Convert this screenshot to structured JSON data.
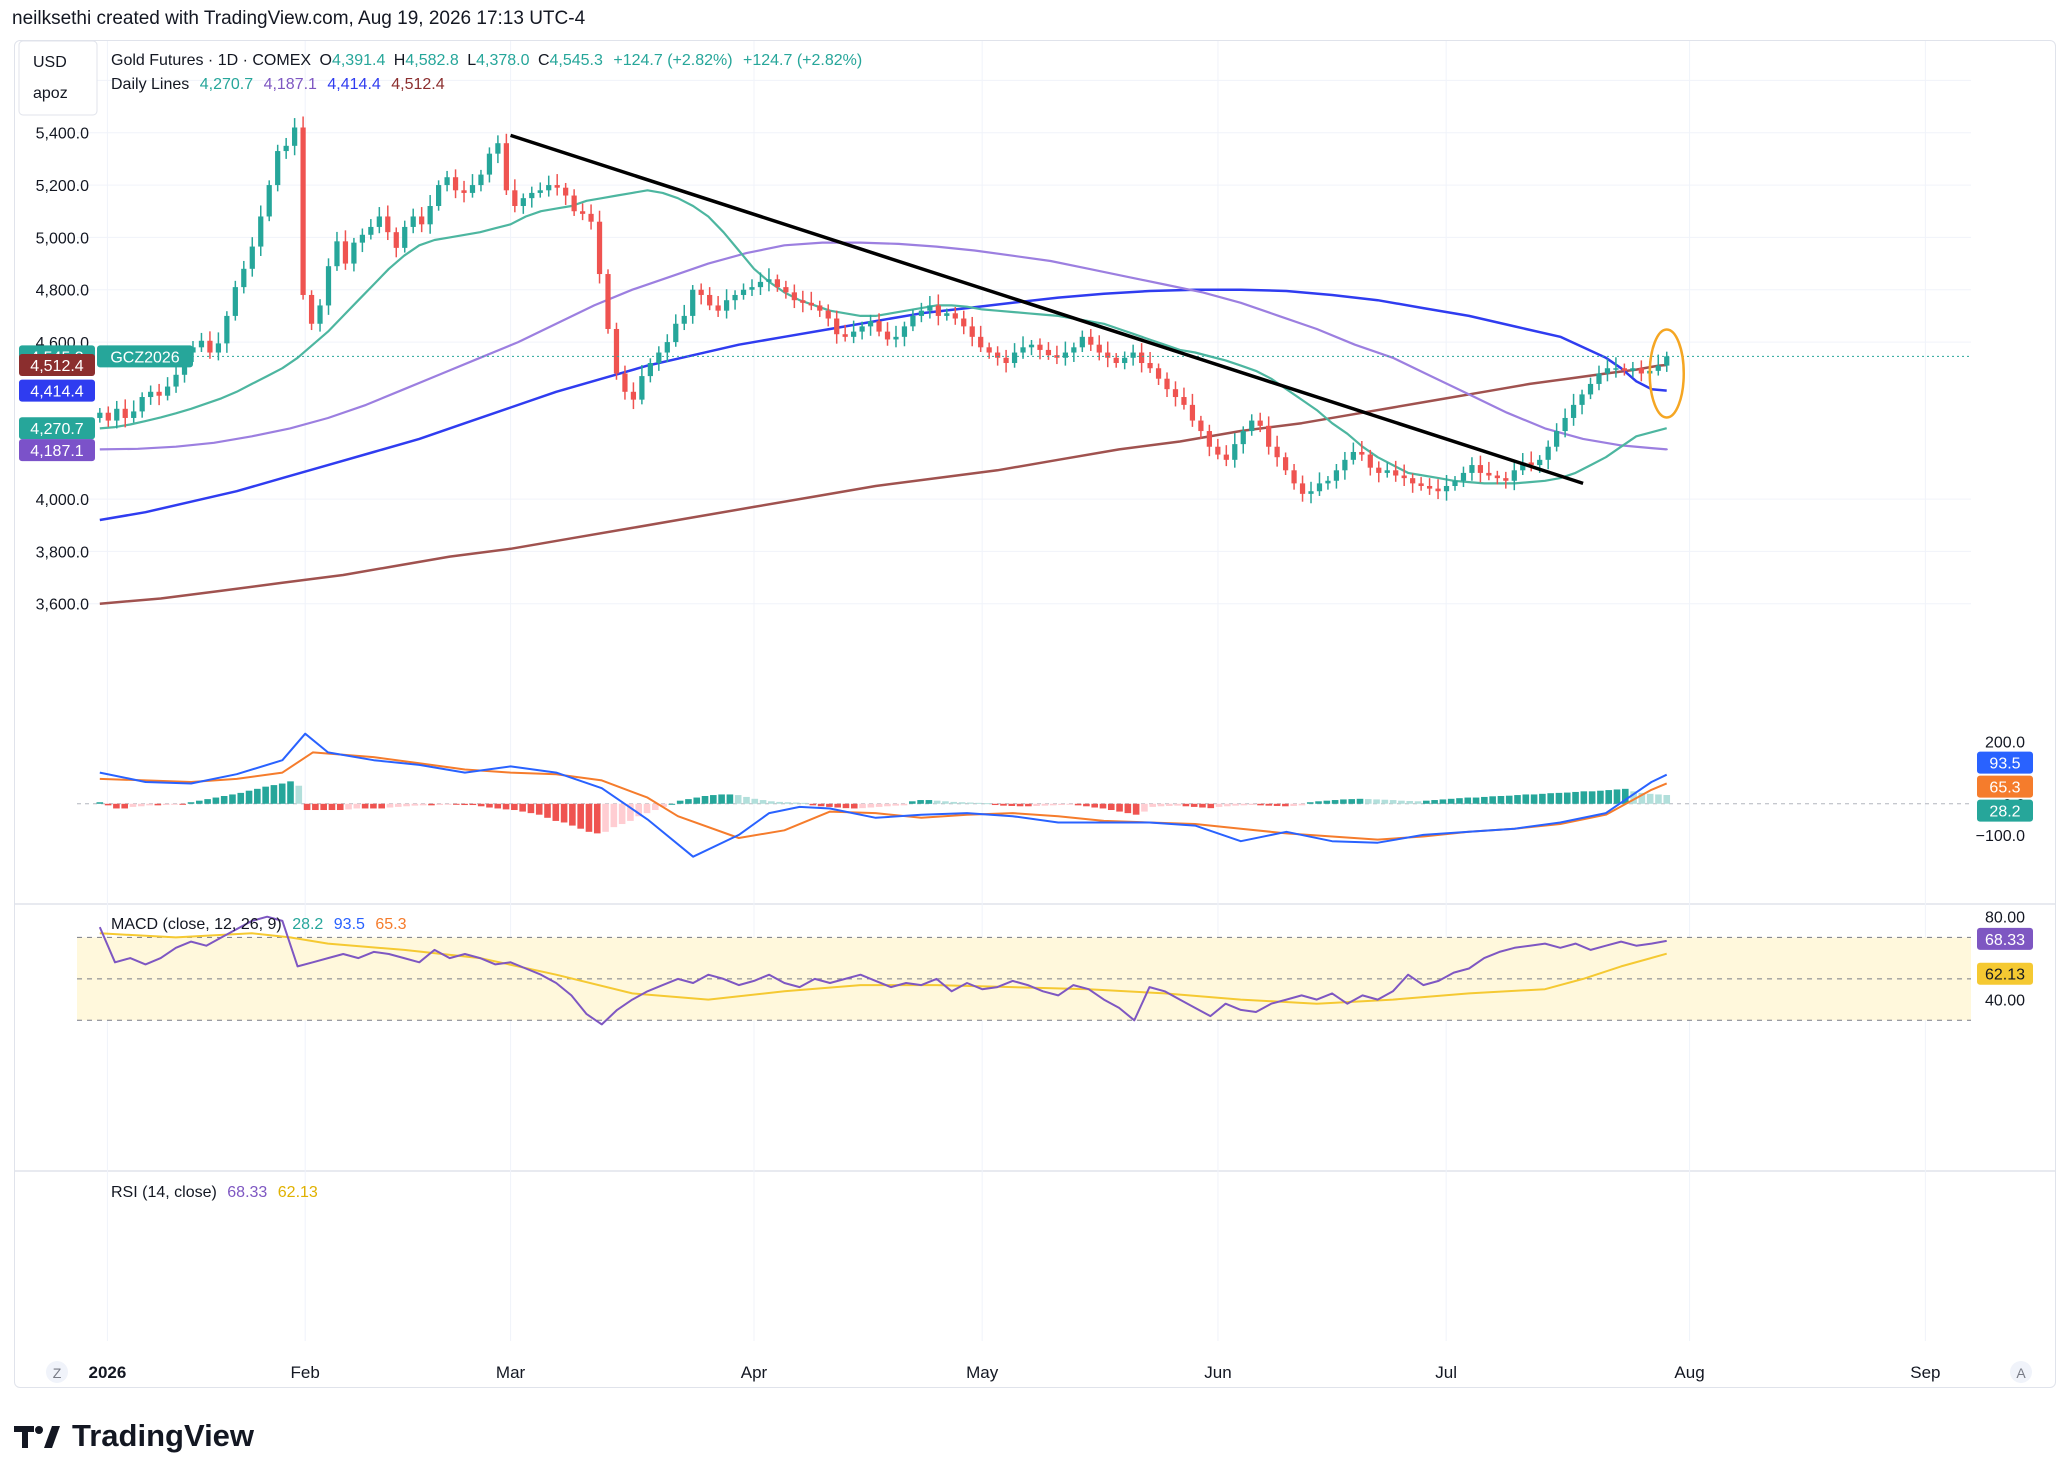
{
  "header": {
    "credit": "neilksethi created with TradingView.com, Aug 19, 2026 17:13 UTC-4"
  },
  "branding": {
    "name": "TradingView"
  },
  "toolbar": {
    "currency": "USD",
    "unit": "apoz",
    "zoom_left": "Z",
    "zoom_right": "A"
  },
  "legend": {
    "symbol": "Gold Futures · 1D · COMEX",
    "open_label": "O",
    "open": "4,391.4",
    "high_label": "H",
    "high": "4,582.8",
    "low_label": "L",
    "low": "4,378.0",
    "close_label": "C",
    "close": "4,545.3",
    "change": "+124.7 (+2.82%)",
    "change2": "+124.7 (+2.82%)",
    "lines_title": "Daily Lines",
    "line_values": [
      "4,270.7",
      "4,187.1",
      "4,414.4",
      "4,512.4"
    ]
  },
  "price_badges": [
    {
      "text": "4,545.3",
      "color": "#26a69a",
      "price": 4545.3
    },
    {
      "text": "4,512.4",
      "color": "#8b2e2e",
      "price": 4512.4
    },
    {
      "text": "4,414.4",
      "color": "#2f3cf0",
      "price": 4414.4
    },
    {
      "text": "4,270.7",
      "color": "#26a69a",
      "price": 4270.7
    },
    {
      "text": "4,187.1",
      "color": "#7b52c9",
      "price": 4187.1
    }
  ],
  "symbol_tag": "GCZ2026",
  "macd_legend": {
    "title": "MACD (close, 12, 26, 9)",
    "v1": "28.2",
    "v2": "93.5",
    "v3": "65.3"
  },
  "macd_badges": [
    {
      "text": "93.5",
      "color": "#2962ff",
      "value": 93.5
    },
    {
      "text": "65.3",
      "color": "#f57c2c",
      "value": 65.3
    },
    {
      "text": "28.2",
      "color": "#26a69a",
      "value": 28.2
    }
  ],
  "rsi_legend": {
    "title": "RSI (14, close)",
    "v1": "68.33",
    "v2": "62.13"
  },
  "rsi_badges": [
    {
      "text": "68.33",
      "color": "#7e57c2",
      "value": 68.33
    },
    {
      "text": "62.13",
      "color": "#f5c932",
      "value": 62.13
    }
  ],
  "colors": {
    "up": "#26a69a",
    "down": "#ef5350",
    "ma20": "#4db6a0",
    "ma50": "#9c7fe0",
    "ma100": "#2f3cf0",
    "ma200": "#a0524f",
    "grid": "#f0f3fa",
    "trendline": "#000000",
    "highlight": "#f5a623"
  },
  "chart_data": [
    {
      "type": "candlestick",
      "title": "Gold Futures · 1D · COMEX",
      "ylim": [
        3450,
        5720
      ],
      "y_ticks": [
        5600,
        5400,
        5200,
        5000,
        4800,
        4600,
        4000,
        3800,
        3600
      ],
      "y_tick_labels": [
        "5,600.0",
        "5,400.0",
        "5,200.0",
        "5,000.0",
        "4,800.0",
        "4,600.0",
        "4,000.0",
        "3,800.0",
        "3,600.0"
      ],
      "x_ticks": [
        "2026",
        "Feb",
        "Mar",
        "Apr",
        "May",
        "Jun",
        "Jul",
        "Aug",
        "Sep"
      ],
      "x_tick_days": [
        1,
        27,
        54,
        86,
        116,
        147,
        177,
        209,
        240
      ],
      "x_range_days": [
        -3,
        246
      ],
      "closes": [
        4330,
        4300,
        4345,
        4310,
        4335,
        4390,
        4410,
        4395,
        4430,
        4475,
        4560,
        4580,
        4605,
        4560,
        4595,
        4700,
        4810,
        4880,
        4965,
        5080,
        5200,
        5330,
        5350,
        5420,
        4780,
        4670,
        4740,
        4890,
        4985,
        4900,
        4980,
        5010,
        5040,
        5080,
        5020,
        4960,
        5040,
        5080,
        5050,
        5120,
        5200,
        5230,
        5180,
        5170,
        5200,
        5240,
        5320,
        5360,
        5180,
        5120,
        5150,
        5170,
        5180,
        5200,
        5190,
        5160,
        5100,
        5090,
        5060,
        4860,
        4650,
        4480,
        4410,
        4380,
        4470,
        4520,
        4560,
        4600,
        4670,
        4700,
        4800,
        4780,
        4740,
        4720,
        4760,
        4780,
        4800,
        4810,
        4830,
        4840,
        4810,
        4790,
        4760,
        4750,
        4740,
        4720,
        4690,
        4630,
        4620,
        4640,
        4660,
        4680,
        4640,
        4610,
        4620,
        4660,
        4700,
        4720,
        4740,
        4700,
        4710,
        4690,
        4660,
        4620,
        4580,
        4560,
        4540,
        4520,
        4560,
        4580,
        4590,
        4570,
        4550,
        4540,
        4560,
        4580,
        4620,
        4590,
        4560,
        4540,
        4520,
        4540,
        4560,
        4520,
        4500,
        4460,
        4420,
        4390,
        4360,
        4300,
        4260,
        4200,
        4170,
        4150,
        4210,
        4260,
        4300,
        4280,
        4200,
        4160,
        4110,
        4060,
        4020,
        4030,
        4060,
        4070,
        4110,
        4150,
        4180,
        4170,
        4120,
        4100,
        4110,
        4090,
        4080,
        4060,
        4050,
        4040,
        4030,
        4050,
        4070,
        4100,
        4130,
        4100,
        4090,
        4080,
        4070,
        4110,
        4140,
        4130,
        4150,
        4200,
        4260,
        4310,
        4360,
        4400,
        4440,
        4480,
        4500,
        4500,
        4490,
        4500,
        4480,
        4490,
        4510,
        4545.3
      ],
      "ma20": [
        4270,
        4275,
        4285,
        4298,
        4312,
        4328,
        4345,
        4365,
        4385,
        4410,
        4440,
        4470,
        4500,
        4540,
        4590,
        4640,
        4700,
        4760,
        4820,
        4880,
        4930,
        4970,
        4990,
        5000,
        5010,
        5020,
        5035,
        5050,
        5080,
        5100,
        5110,
        5120,
        5140,
        5150,
        5160,
        5170,
        5180,
        5170,
        5150,
        5120,
        5080,
        5020,
        4950,
        4880,
        4830,
        4790,
        4760,
        4740,
        4720,
        4710,
        4700,
        4700,
        4710,
        4720,
        4730,
        4740,
        4740,
        4735,
        4725,
        4720,
        4715,
        4710,
        4705,
        4700,
        4690,
        4680,
        4670,
        4650,
        4630,
        4610,
        4590,
        4570,
        4560,
        4545,
        4530,
        4510,
        4490,
        4460,
        4420,
        4380,
        4340,
        4290,
        4250,
        4200,
        4160,
        4130,
        4100,
        4090,
        4080,
        4070,
        4065,
        4060,
        4060,
        4060,
        4065,
        4070,
        4080,
        4100,
        4130,
        4160,
        4200,
        4240,
        4270.7
      ],
      "ma20_days": [
        0,
        2,
        4,
        6,
        8,
        10,
        12,
        14,
        16,
        18,
        20,
        22,
        24,
        26,
        28,
        30,
        32,
        34,
        36,
        38,
        40,
        42,
        44,
        46,
        48,
        50,
        52,
        54,
        56,
        58,
        60,
        62,
        64,
        66,
        68,
        70,
        72,
        74,
        76,
        78,
        80,
        82,
        84,
        86,
        88,
        90,
        92,
        94,
        96,
        98,
        100,
        102,
        104,
        106,
        108,
        110,
        112,
        114,
        116,
        118,
        120,
        122,
        124,
        126,
        128,
        130,
        132,
        134,
        136,
        138,
        140,
        142,
        144,
        146,
        148,
        150,
        152,
        154,
        156,
        158,
        160,
        162,
        164,
        166,
        168,
        170,
        172,
        174,
        176,
        178,
        180,
        182,
        184,
        186,
        188,
        190,
        192,
        194,
        196,
        198,
        200,
        202,
        206
      ],
      "ma50": [
        4190,
        4192,
        4200,
        4215,
        4240,
        4270,
        4310,
        4360,
        4420,
        4480,
        4540,
        4600,
        4670,
        4740,
        4800,
        4850,
        4900,
        4940,
        4970,
        4980,
        4980,
        4975,
        4965,
        4950,
        4930,
        4910,
        4880,
        4850,
        4820,
        4790,
        4750,
        4700,
        4650,
        4590,
        4540,
        4470,
        4400,
        4330,
        4270,
        4230,
        4205,
        4195,
        4190,
        4187.1
      ],
      "ma50_days": [
        0,
        5,
        10,
        15,
        20,
        25,
        30,
        35,
        40,
        45,
        50,
        55,
        60,
        65,
        70,
        75,
        80,
        85,
        90,
        95,
        100,
        105,
        110,
        115,
        120,
        125,
        130,
        135,
        140,
        145,
        150,
        155,
        160,
        165,
        170,
        175,
        180,
        185,
        190,
        195,
        200,
        204,
        206,
        206
      ],
      "ma100": [
        3920,
        3950,
        3990,
        4030,
        4080,
        4130,
        4180,
        4230,
        4290,
        4350,
        4410,
        4460,
        4510,
        4550,
        4590,
        4620,
        4650,
        4680,
        4710,
        4730,
        4750,
        4770,
        4785,
        4795,
        4800,
        4800,
        4795,
        4780,
        4760,
        4730,
        4700,
        4660,
        4620,
        4580,
        4540,
        4500,
        4450,
        4420,
        4414.4
      ],
      "ma100_days": [
        0,
        6,
        12,
        18,
        24,
        30,
        36,
        42,
        48,
        54,
        60,
        66,
        72,
        78,
        84,
        90,
        96,
        102,
        108,
        114,
        120,
        126,
        132,
        138,
        144,
        150,
        156,
        162,
        168,
        174,
        180,
        186,
        192,
        195,
        198,
        200,
        202,
        204,
        206
      ],
      "ma200": [
        3600,
        3620,
        3650,
        3680,
        3710,
        3740,
        3780,
        3810,
        3850,
        3890,
        3930,
        3970,
        4010,
        4050,
        4080,
        4110,
        4150,
        4190,
        4220,
        4260,
        4290,
        4320,
        4350,
        4380,
        4410,
        4440,
        4460,
        4480,
        4495,
        4505,
        4510,
        4512.4
      ],
      "ma200_days": [
        0,
        8,
        16,
        24,
        32,
        38,
        46,
        54,
        62,
        70,
        78,
        86,
        94,
        102,
        110,
        118,
        126,
        134,
        142,
        150,
        158,
        164,
        170,
        176,
        182,
        188,
        193,
        198,
        202,
        204,
        205,
        206
      ],
      "trendline": {
        "from": [
          54,
          5390
        ],
        "to": [
          195,
          4060
        ]
      },
      "highlight_day": 206
    },
    {
      "type": "line",
      "title": "MACD (close, 12, 26, 9)",
      "ylim": [
        -280,
        330
      ],
      "y_ticks": [
        200,
        0,
        -100
      ],
      "y_tick_labels": [
        "200.0",
        "0.0",
        "−100.0"
      ],
      "macd_days": [
        0,
        6,
        12,
        18,
        24,
        27,
        30,
        36,
        42,
        48,
        54,
        60,
        66,
        72,
        78,
        84,
        88,
        92,
        96,
        102,
        108,
        114,
        120,
        126,
        132,
        138,
        144,
        150,
        156,
        162,
        168,
        174,
        180,
        186,
        192,
        198,
        204,
        206
      ],
      "macd": [
        100,
        70,
        65,
        95,
        140,
        225,
        165,
        140,
        125,
        100,
        120,
        100,
        50,
        -50,
        -170,
        -100,
        -30,
        -10,
        -15,
        -45,
        -35,
        -30,
        -40,
        -60,
        -60,
        -60,
        -70,
        -120,
        -90,
        -120,
        -125,
        -100,
        -90,
        -80,
        -60,
        -30,
        70,
        93.5
      ],
      "signal_days": [
        0,
        6,
        12,
        18,
        24,
        28,
        36,
        42,
        48,
        54,
        60,
        66,
        72,
        76,
        84,
        90,
        96,
        102,
        108,
        114,
        120,
        126,
        132,
        138,
        144,
        150,
        156,
        162,
        168,
        174,
        180,
        186,
        192,
        198,
        204,
        206
      ],
      "signal": [
        80,
        75,
        70,
        80,
        100,
        165,
        150,
        130,
        110,
        100,
        95,
        75,
        20,
        -40,
        -110,
        -85,
        -25,
        -30,
        -45,
        -35,
        -30,
        -40,
        -55,
        -60,
        -65,
        -80,
        -95,
        -105,
        -115,
        -105,
        -90,
        -80,
        -65,
        -35,
        45,
        65.3
      ],
      "histogram": [
        5,
        -5,
        -15,
        -15,
        -10,
        -8,
        -5,
        -5,
        -4,
        -3,
        -3,
        5,
        10,
        15,
        20,
        25,
        30,
        35,
        42,
        48,
        55,
        60,
        65,
        72,
        58,
        -20,
        -20,
        -20,
        -20,
        -20,
        -18,
        -15,
        -15,
        -15,
        -15,
        -12,
        -10,
        -8,
        -6,
        -5,
        -5,
        -4,
        -3,
        -3,
        -4,
        -4,
        -8,
        -12,
        -15,
        -18,
        -20,
        -25,
        -30,
        -35,
        -45,
        -55,
        -60,
        -70,
        -80,
        -90,
        -95,
        -90,
        -75,
        -65,
        -55,
        -40,
        -30,
        -20,
        -10,
        0,
        10,
        15,
        20,
        25,
        28,
        30,
        30,
        28,
        22,
        16,
        12,
        8,
        6,
        5,
        4,
        3,
        -5,
        -8,
        -10,
        -12,
        -14,
        -15,
        -14,
        -12,
        -10,
        -8,
        -6,
        -5,
        8,
        12,
        12,
        10,
        8,
        6,
        5,
        4,
        3,
        2,
        -4,
        -6,
        -7,
        -8,
        -8,
        -7,
        -6,
        -5,
        -4,
        -3,
        -5,
        -8,
        -12,
        -15,
        -20,
        -25,
        -30,
        -35,
        -25,
        -10,
        -8,
        -7,
        -6,
        -8,
        -10,
        -12,
        -14,
        -10,
        -8,
        -6,
        -5,
        -4,
        -5,
        -6,
        -7,
        -8,
        -7,
        -5,
        5,
        8,
        10,
        12,
        14,
        15,
        16,
        15,
        14,
        13,
        12,
        10,
        9,
        8,
        10,
        12,
        14,
        16,
        18,
        20,
        20,
        22,
        24,
        25,
        26,
        28,
        30,
        30,
        32,
        34,
        35,
        36,
        38,
        40,
        40,
        42,
        44,
        46,
        48,
        40,
        35,
        32,
        30,
        28.2
      ],
      "histogram_days": [
        0,
        206
      ]
    },
    {
      "type": "line",
      "title": "RSI (14, close)",
      "ylim": [
        20,
        90
      ],
      "y_ticks": [
        80,
        40
      ],
      "y_tick_labels": [
        "80.00",
        "40.00"
      ],
      "bands": [
        70,
        50,
        30
      ],
      "rsi_days": [
        0,
        2,
        4,
        6,
        8,
        10,
        12,
        14,
        16,
        18,
        20,
        22,
        24,
        26,
        28,
        30,
        32,
        34,
        36,
        38,
        40,
        42,
        44,
        46,
        48,
        50,
        52,
        54,
        56,
        58,
        60,
        62,
        64,
        66,
        68,
        70,
        72,
        74,
        76,
        78,
        80,
        82,
        84,
        86,
        88,
        90,
        92,
        94,
        96,
        98,
        100,
        102,
        104,
        106,
        108,
        110,
        112,
        114,
        116,
        118,
        120,
        122,
        124,
        126,
        128,
        130,
        132,
        134,
        136,
        138,
        140,
        142,
        144,
        146,
        148,
        150,
        152,
        154,
        156,
        158,
        160,
        162,
        164,
        166,
        168,
        170,
        172,
        174,
        176,
        178,
        180,
        182,
        184,
        186,
        188,
        190,
        192,
        194,
        196,
        198,
        200,
        202,
        204,
        206
      ],
      "rsi": [
        75,
        58,
        60,
        57,
        60,
        65,
        68,
        66,
        70,
        74,
        78,
        80,
        78,
        56,
        58,
        60,
        62,
        60,
        63,
        62,
        60,
        58,
        64,
        60,
        62,
        60,
        57,
        58,
        55,
        52,
        48,
        42,
        33,
        28,
        35,
        40,
        44,
        47,
        50,
        48,
        52,
        50,
        47,
        49,
        52,
        48,
        46,
        50,
        48,
        50,
        52,
        49,
        46,
        48,
        47,
        50,
        44,
        48,
        45,
        46,
        49,
        47,
        44,
        42,
        47,
        45,
        40,
        36,
        30,
        46,
        44,
        40,
        36,
        32,
        38,
        35,
        34,
        38,
        40,
        42,
        40,
        43,
        38,
        42,
        40,
        44,
        52,
        47,
        49,
        53,
        55,
        60,
        63,
        65,
        66,
        67,
        65,
        67,
        64,
        66,
        68,
        66,
        67,
        68.33
      ],
      "signal_days": [
        0,
        10,
        20,
        25,
        30,
        40,
        50,
        60,
        70,
        80,
        90,
        100,
        110,
        120,
        130,
        140,
        150,
        160,
        170,
        180,
        190,
        195,
        200,
        206
      ],
      "signal": [
        72,
        70,
        72,
        70,
        67,
        64,
        60,
        52,
        43,
        40,
        44,
        47,
        47,
        46,
        45,
        43,
        40,
        38,
        40,
        43,
        45,
        50,
        56,
        62.13
      ]
    }
  ]
}
